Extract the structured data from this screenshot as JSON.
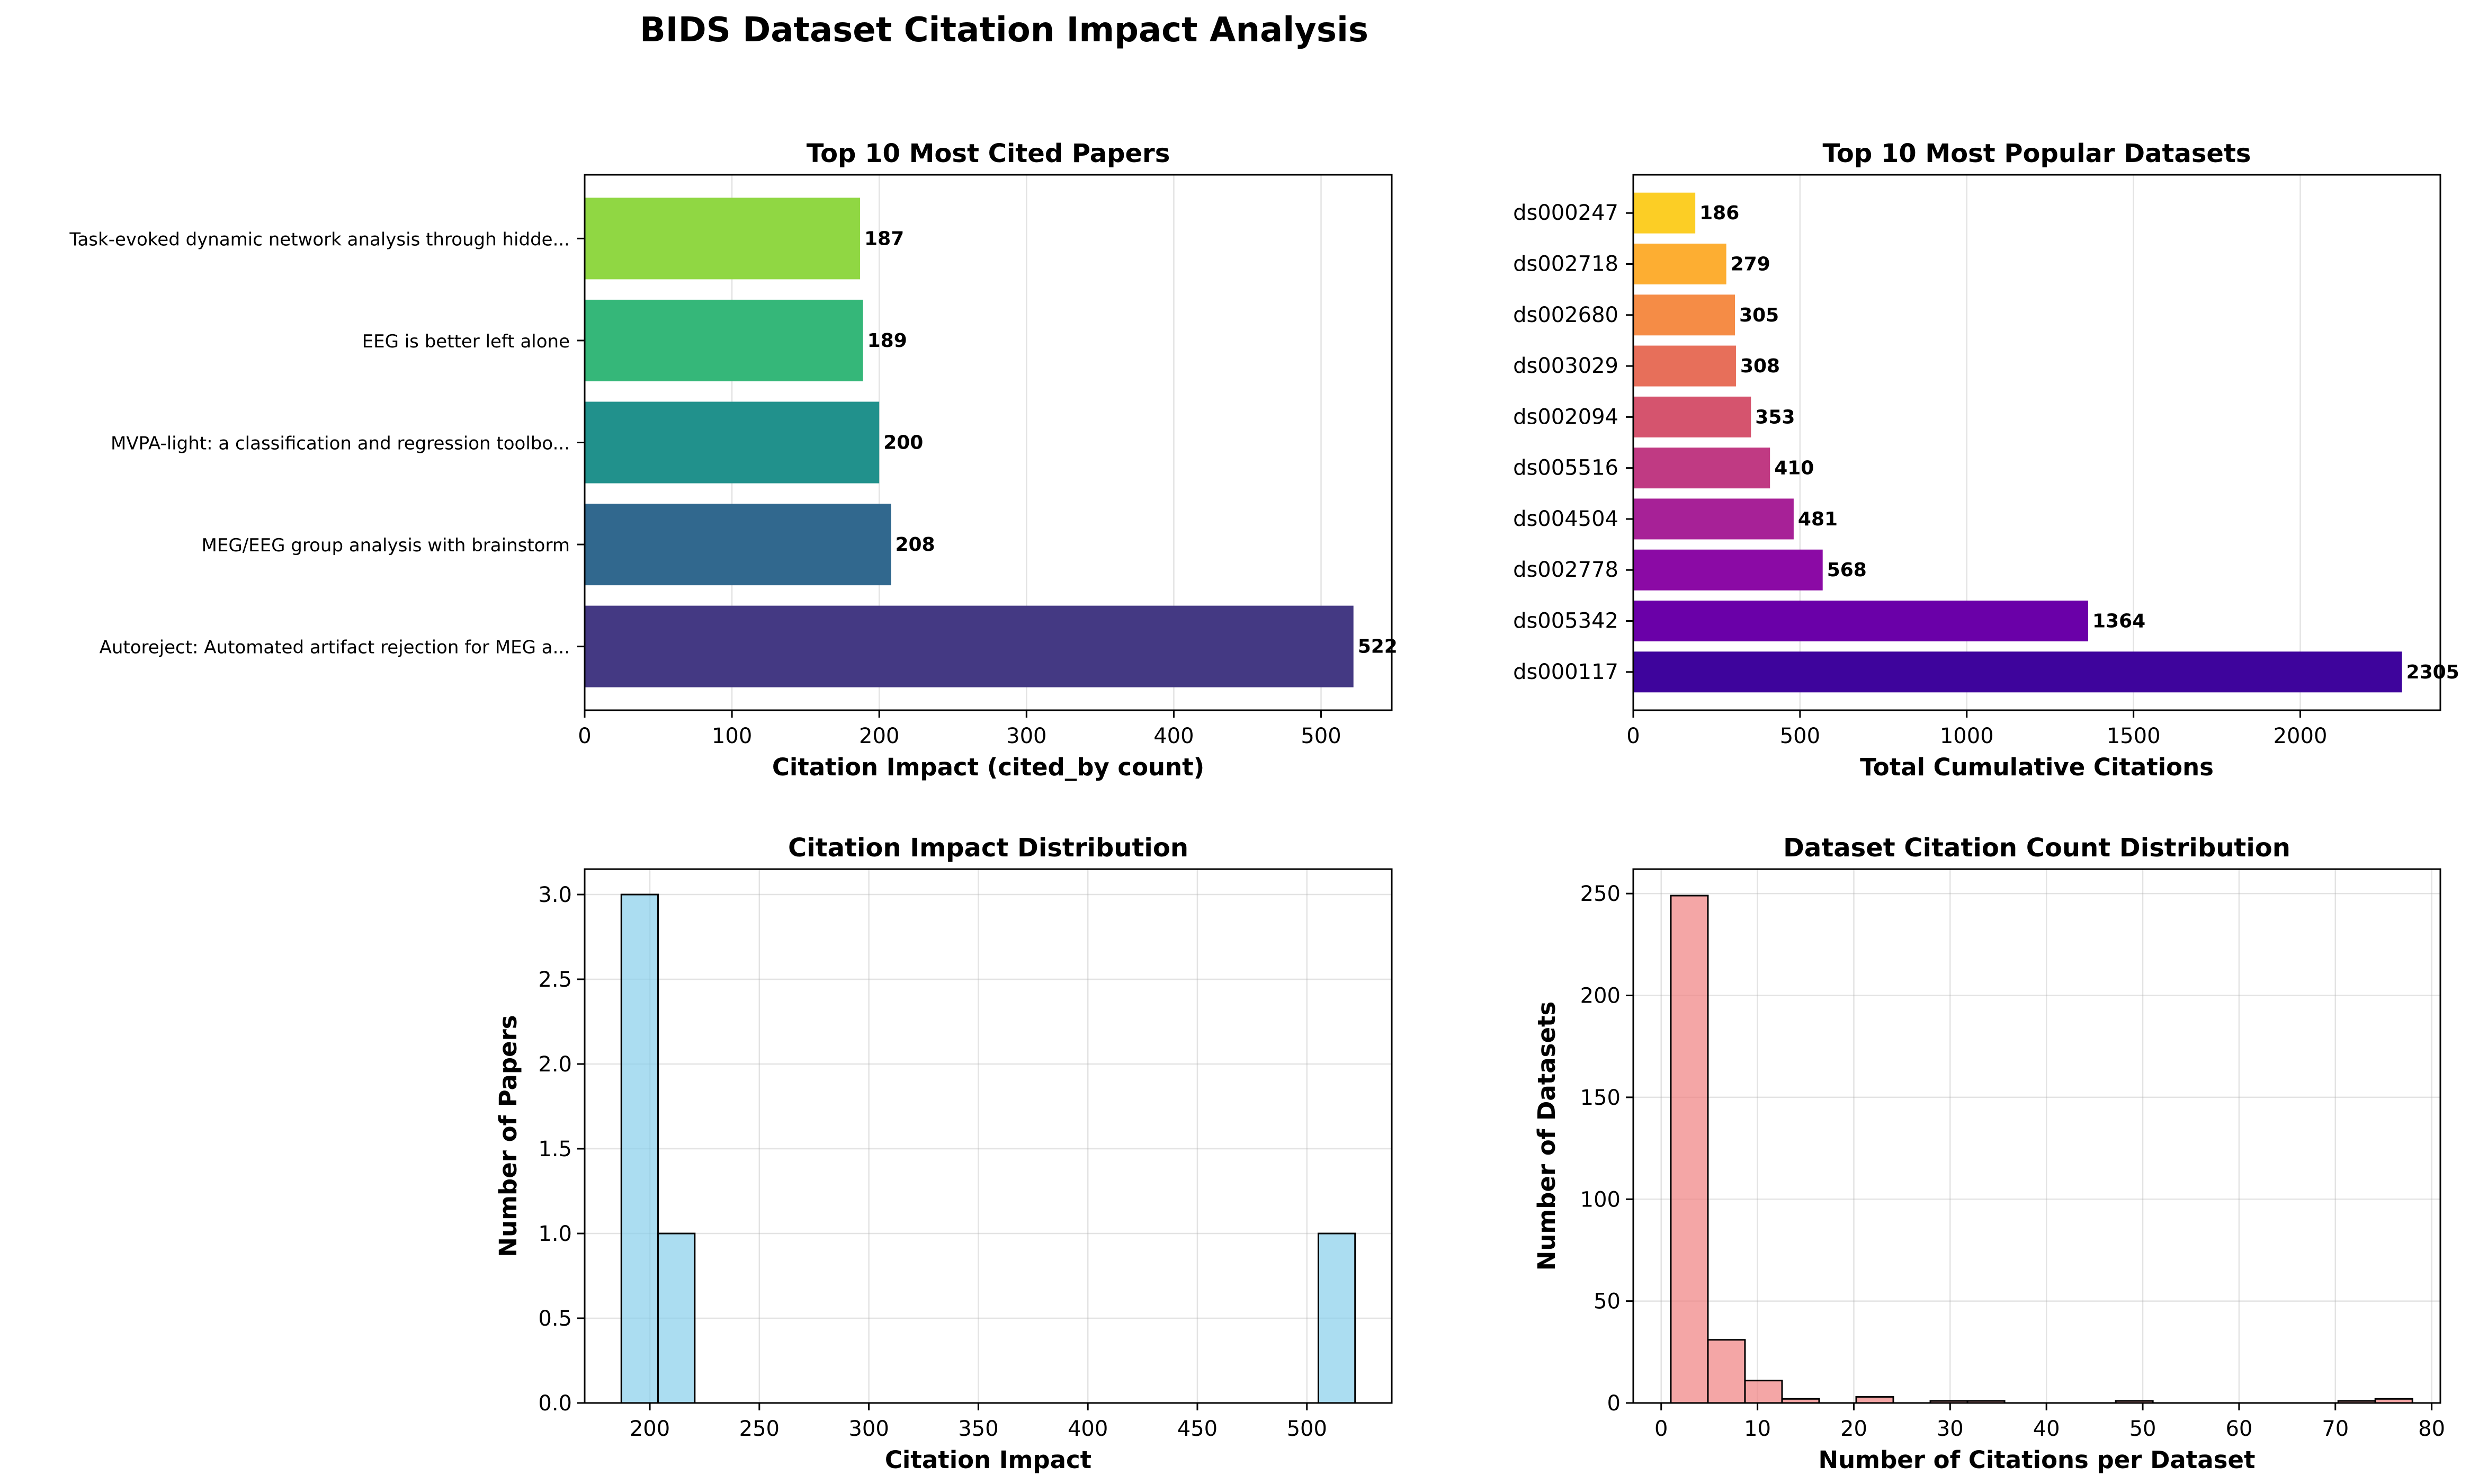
{
  "suptitle": "BIDS Dataset Citation Impact Analysis",
  "chart_data": [
    {
      "type": "bar",
      "orientation": "horizontal",
      "title": "Top 10 Most Cited Papers",
      "xlabel": "Citation Impact (cited_by count)",
      "ylabel": "",
      "xlim": [
        0,
        548
      ],
      "xticks": [
        0,
        100,
        200,
        300,
        400,
        500
      ],
      "grid": true,
      "show_value_labels": true,
      "categories": [
        "Autoreject: Automated artifact rejection for MEG a...",
        "MEG/EEG group analysis with brainstorm",
        "MVPA-light: a classification and regression toolbo...",
        "EEG is better left alone",
        "Task-evoked dynamic network analysis through hidde..."
      ],
      "values": [
        522,
        208,
        200,
        189,
        187
      ],
      "colors": [
        "#443983",
        "#31688e",
        "#21918c",
        "#35b779",
        "#90d743"
      ]
    },
    {
      "type": "bar",
      "orientation": "horizontal",
      "title": "Top 10 Most Popular Datasets",
      "xlabel": "Total Cumulative Citations",
      "ylabel": "",
      "xlim": [
        0,
        2420
      ],
      "xticks": [
        0,
        500,
        1000,
        1500,
        2000
      ],
      "grid": true,
      "show_value_labels": true,
      "categories": [
        "ds000117",
        "ds005342",
        "ds002778",
        "ds004504",
        "ds005516",
        "ds002094",
        "ds003029",
        "ds002680",
        "ds002718",
        "ds000247"
      ],
      "values": [
        2305,
        1364,
        568,
        481,
        410,
        353,
        308,
        305,
        279,
        186
      ],
      "colors": [
        "#3e049c",
        "#6a00a8",
        "#8b0aa5",
        "#a72197",
        "#c03a83",
        "#d5546e",
        "#e76f5a",
        "#f58c46",
        "#fdae32",
        "#fcce25"
      ]
    },
    {
      "type": "histogram",
      "title": "Citation Impact Distribution",
      "xlabel": "Citation Impact",
      "ylabel": "Number of Papers",
      "xlim": [
        170.25,
        538.75
      ],
      "ylim": [
        0,
        3.15
      ],
      "xticks": [
        200,
        250,
        300,
        350,
        400,
        450,
        500
      ],
      "yticks": [
        0.0,
        0.5,
        1.0,
        1.5,
        2.0,
        2.5,
        3.0
      ],
      "ytick_decimals": 1,
      "grid": true,
      "bin_start": 187,
      "bin_width": 16.75,
      "counts": [
        3,
        1,
        0,
        0,
        0,
        0,
        0,
        0,
        0,
        0,
        0,
        0,
        0,
        0,
        0,
        0,
        0,
        0,
        0,
        1
      ],
      "color": "#87ceeb",
      "opacity": 0.7
    },
    {
      "type": "histogram",
      "title": "Dataset Citation Count Distribution",
      "xlabel": "Number of Citations per Dataset",
      "ylabel": "Number of Datasets",
      "xlim": [
        -2.9,
        80.9
      ],
      "ylim": [
        0,
        262
      ],
      "xticks": [
        0,
        10,
        20,
        30,
        40,
        50,
        60,
        70,
        80
      ],
      "yticks": [
        0,
        50,
        100,
        150,
        200,
        250
      ],
      "ytick_decimals": 0,
      "grid": true,
      "bin_start": 1,
      "bin_width": 3.85,
      "counts": [
        249,
        31,
        11,
        2,
        0,
        3,
        0,
        1,
        1,
        0,
        0,
        0,
        1,
        0,
        0,
        0,
        0,
        0,
        1,
        2
      ],
      "color": "#f08080",
      "opacity": 0.7
    }
  ]
}
